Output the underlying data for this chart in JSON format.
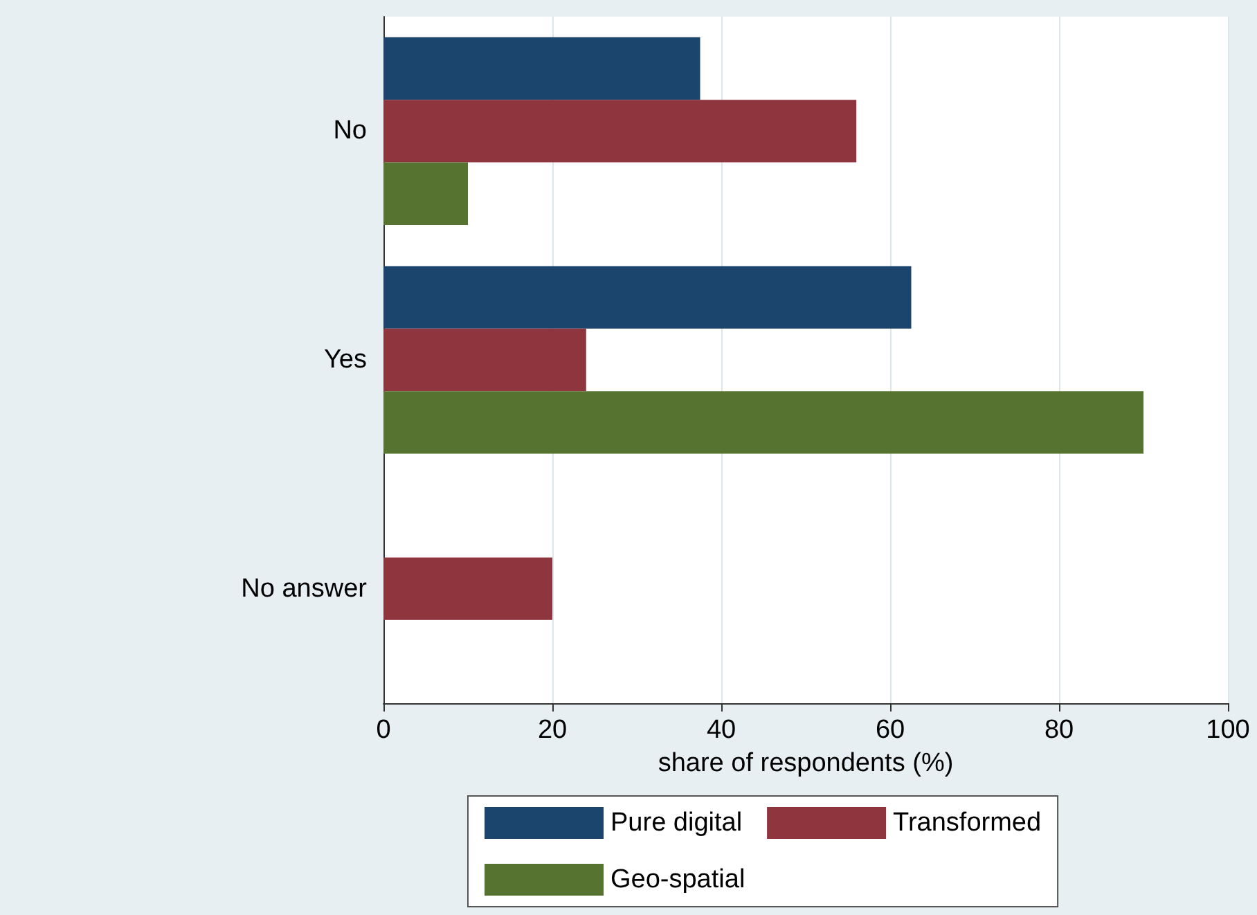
{
  "chart_data": {
    "type": "bar",
    "orientation": "horizontal",
    "xlabel": "share of respondents (%)",
    "categories": [
      "No",
      "Yes",
      "No answer"
    ],
    "series": [
      {
        "name": "Pure digital",
        "color": "#1b456d",
        "values": [
          37.5,
          62.5,
          0
        ]
      },
      {
        "name": "Transformed",
        "color": "#8f353e",
        "values": [
          56,
          24,
          20
        ]
      },
      {
        "name": "Geo-spatial",
        "color": "#56742f",
        "values": [
          10,
          90,
          0
        ]
      }
    ],
    "xlim": [
      0,
      100
    ],
    "xticks": [
      0,
      20,
      40,
      60,
      80,
      100
    ],
    "grid": "x",
    "legend": "bottom"
  }
}
